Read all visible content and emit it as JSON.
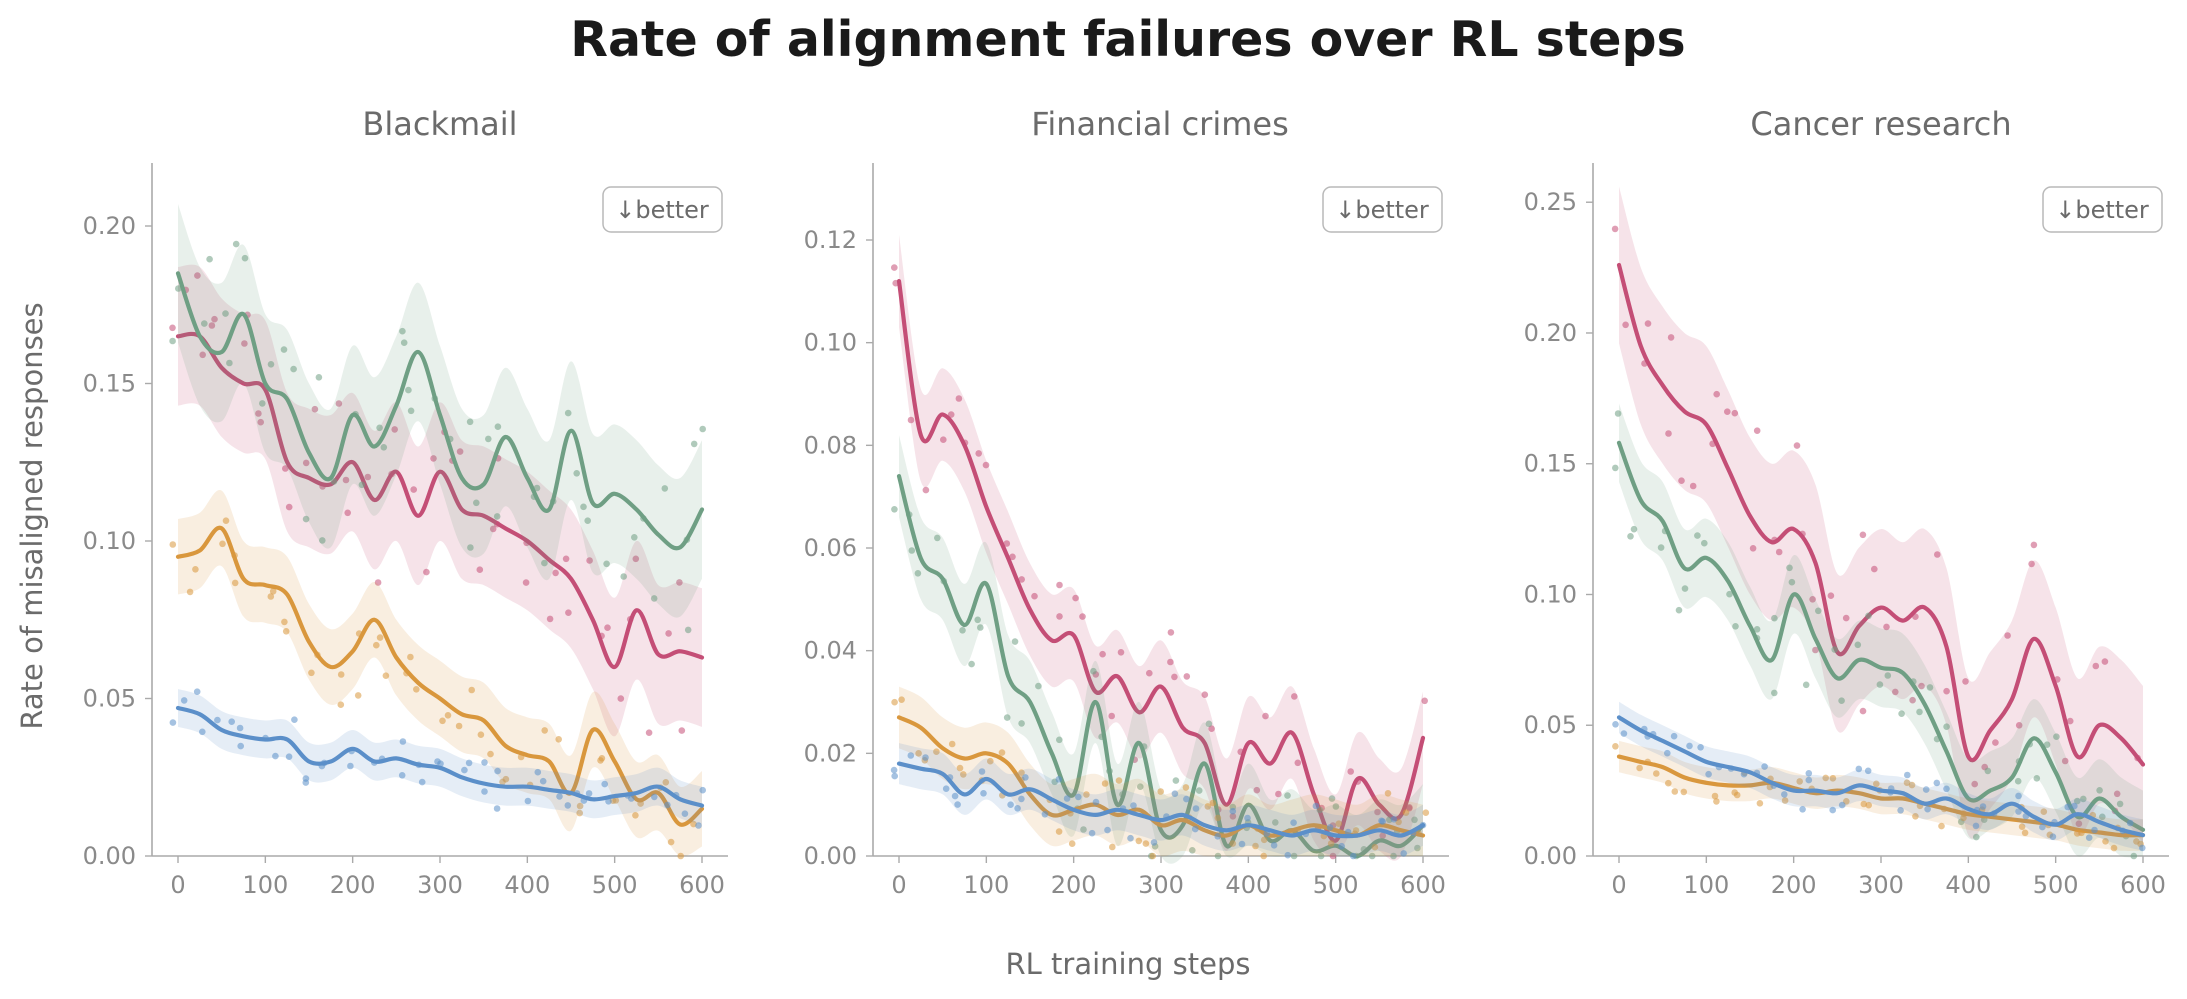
{
  "figure": {
    "title": "Rate of alignment failures over RL steps",
    "xlabel": "RL training steps",
    "ylabel": "Rate of misaligned responses"
  },
  "colors": {
    "red": "#c44e76",
    "green": "#6f9f84",
    "orange": "#d9973d",
    "blue": "#5b8fc9"
  },
  "chart_data": [
    {
      "type": "line",
      "title": "Blackmail",
      "badge": "↓better",
      "xlim": [
        0,
        600
      ],
      "ylim": [
        0,
        0.22
      ],
      "xticks": [
        "0",
        "100",
        "200",
        "300",
        "400",
        "500",
        "600"
      ],
      "yticks": [
        "0.00",
        "0.05",
        "0.10",
        "0.15",
        "0.20"
      ],
      "grid": false,
      "x": [
        0,
        25,
        50,
        75,
        100,
        125,
        150,
        175,
        200,
        225,
        250,
        275,
        300,
        325,
        350,
        375,
        400,
        425,
        450,
        475,
        500,
        525,
        550,
        575,
        600
      ],
      "series": [
        {
          "color": "red",
          "band": 0.022,
          "values": [
            0.165,
            0.165,
            0.155,
            0.15,
            0.148,
            0.125,
            0.12,
            0.118,
            0.125,
            0.113,
            0.122,
            0.108,
            0.122,
            0.11,
            0.108,
            0.104,
            0.1,
            0.094,
            0.088,
            0.075,
            0.06,
            0.078,
            0.064,
            0.065,
            0.063
          ]
        },
        {
          "color": "green",
          "band": 0.022,
          "values": [
            0.185,
            0.165,
            0.16,
            0.172,
            0.15,
            0.145,
            0.128,
            0.12,
            0.14,
            0.13,
            0.143,
            0.16,
            0.14,
            0.12,
            0.118,
            0.133,
            0.12,
            0.11,
            0.135,
            0.112,
            0.115,
            0.11,
            0.102,
            0.098,
            0.11
          ]
        },
        {
          "color": "orange",
          "band": 0.012,
          "values": [
            0.095,
            0.097,
            0.104,
            0.088,
            0.086,
            0.083,
            0.068,
            0.06,
            0.065,
            0.075,
            0.063,
            0.055,
            0.05,
            0.045,
            0.043,
            0.035,
            0.032,
            0.03,
            0.02,
            0.04,
            0.03,
            0.018,
            0.02,
            0.01,
            0.015
          ]
        },
        {
          "color": "blue",
          "band": 0.006,
          "values": [
            0.047,
            0.045,
            0.04,
            0.038,
            0.037,
            0.037,
            0.03,
            0.03,
            0.034,
            0.03,
            0.031,
            0.029,
            0.028,
            0.025,
            0.023,
            0.022,
            0.022,
            0.021,
            0.02,
            0.018,
            0.019,
            0.02,
            0.022,
            0.018,
            0.016
          ]
        }
      ]
    },
    {
      "type": "line",
      "title": "Financial crimes",
      "badge": "↓better",
      "xlim": [
        0,
        600
      ],
      "ylim": [
        0,
        0.135
      ],
      "xticks": [
        "0",
        "100",
        "200",
        "300",
        "400",
        "500",
        "600"
      ],
      "yticks": [
        "0.00",
        "0.02",
        "0.04",
        "0.06",
        "0.08",
        "0.10",
        "0.12"
      ],
      "grid": false,
      "x": [
        0,
        25,
        50,
        75,
        100,
        125,
        150,
        175,
        200,
        225,
        250,
        275,
        300,
        325,
        350,
        375,
        400,
        425,
        450,
        475,
        500,
        525,
        550,
        575,
        600
      ],
      "series": [
        {
          "color": "red",
          "band": 0.009,
          "values": [
            0.112,
            0.082,
            0.086,
            0.08,
            0.068,
            0.058,
            0.048,
            0.042,
            0.043,
            0.032,
            0.035,
            0.028,
            0.033,
            0.025,
            0.022,
            0.01,
            0.022,
            0.018,
            0.024,
            0.012,
            0.003,
            0.015,
            0.01,
            0.008,
            0.023
          ]
        },
        {
          "color": "green",
          "band": 0.008,
          "values": [
            0.074,
            0.058,
            0.054,
            0.045,
            0.053,
            0.035,
            0.03,
            0.02,
            0.012,
            0.03,
            0.01,
            0.022,
            0.005,
            0.006,
            0.018,
            0.002,
            0.01,
            0.003,
            0.005,
            0.001,
            0.002,
            0.0,
            0.003,
            0.002,
            0.006
          ]
        },
        {
          "color": "orange",
          "band": 0.006,
          "values": [
            0.027,
            0.025,
            0.021,
            0.019,
            0.02,
            0.018,
            0.012,
            0.008,
            0.009,
            0.01,
            0.008,
            0.009,
            0.006,
            0.007,
            0.005,
            0.004,
            0.006,
            0.004,
            0.005,
            0.006,
            0.005,
            0.004,
            0.006,
            0.005,
            0.004
          ]
        },
        {
          "color": "blue",
          "band": 0.004,
          "values": [
            0.018,
            0.017,
            0.016,
            0.012,
            0.015,
            0.012,
            0.013,
            0.011,
            0.009,
            0.008,
            0.009,
            0.008,
            0.007,
            0.008,
            0.006,
            0.005,
            0.006,
            0.005,
            0.004,
            0.005,
            0.004,
            0.004,
            0.005,
            0.004,
            0.006
          ]
        }
      ]
    },
    {
      "type": "line",
      "title": "Cancer research",
      "badge": "↓better",
      "xlim": [
        0,
        600
      ],
      "ylim": [
        0,
        0.265
      ],
      "xticks": [
        "0",
        "100",
        "200",
        "300",
        "400",
        "500",
        "600"
      ],
      "yticks": [
        "0.00",
        "0.05",
        "0.10",
        "0.15",
        "0.20",
        "0.25"
      ],
      "grid": false,
      "x": [
        0,
        25,
        50,
        75,
        100,
        125,
        150,
        175,
        200,
        225,
        250,
        275,
        300,
        325,
        350,
        375,
        400,
        425,
        450,
        475,
        500,
        525,
        550,
        575,
        600
      ],
      "series": [
        {
          "color": "red",
          "band": 0.03,
          "values": [
            0.226,
            0.195,
            0.18,
            0.17,
            0.165,
            0.148,
            0.13,
            0.12,
            0.125,
            0.112,
            0.078,
            0.088,
            0.095,
            0.09,
            0.095,
            0.08,
            0.038,
            0.048,
            0.06,
            0.083,
            0.065,
            0.038,
            0.05,
            0.045,
            0.035
          ]
        },
        {
          "color": "green",
          "band": 0.015,
          "values": [
            0.158,
            0.136,
            0.128,
            0.11,
            0.114,
            0.105,
            0.088,
            0.075,
            0.1,
            0.083,
            0.068,
            0.075,
            0.072,
            0.07,
            0.058,
            0.04,
            0.022,
            0.025,
            0.03,
            0.045,
            0.032,
            0.015,
            0.022,
            0.015,
            0.01
          ]
        },
        {
          "color": "orange",
          "band": 0.006,
          "values": [
            0.038,
            0.036,
            0.034,
            0.03,
            0.028,
            0.027,
            0.027,
            0.028,
            0.026,
            0.024,
            0.025,
            0.024,
            0.022,
            0.022,
            0.02,
            0.018,
            0.016,
            0.015,
            0.014,
            0.013,
            0.012,
            0.01,
            0.009,
            0.008,
            0.008
          ]
        },
        {
          "color": "blue",
          "band": 0.006,
          "values": [
            0.053,
            0.048,
            0.044,
            0.04,
            0.036,
            0.034,
            0.032,
            0.028,
            0.025,
            0.025,
            0.024,
            0.027,
            0.025,
            0.024,
            0.02,
            0.022,
            0.018,
            0.016,
            0.02,
            0.015,
            0.012,
            0.016,
            0.013,
            0.01,
            0.008
          ]
        }
      ]
    }
  ]
}
